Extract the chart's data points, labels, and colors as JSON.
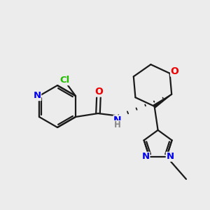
{
  "bg_color": "#ececec",
  "bond_color": "#1a1a1a",
  "atom_colors": {
    "N": "#0000ee",
    "O": "#ee0000",
    "Cl": "#22bb00",
    "C": "#1a1a1a",
    "H": "#888888"
  },
  "lw": 1.6,
  "fs": 9.5
}
